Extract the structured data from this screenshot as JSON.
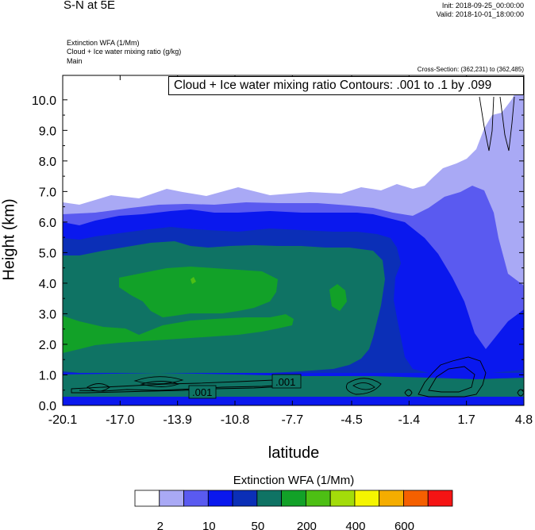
{
  "header": {
    "title": "S-N at 5E",
    "init": "Init: 2018-09-25_00:00:00",
    "valid": "Valid: 2018-10-01_18:00:00",
    "fields": [
      "Extinction WFA   (1/Mm)",
      "Cloud + Ice water mixing ratio   (g/kg)",
      "Main"
    ],
    "cross_section": "Cross-Section: (362,231) to (362,485)"
  },
  "contour_info": "Cloud + Ice water mixing ratio Contours: .001 to .1 by .099",
  "colors": {
    "levels": [
      "#ffffff",
      "#a9a9f5",
      "#5a5af0",
      "#0a18ee",
      "#0b2fb7",
      "#0f7364",
      "#12a128",
      "#4dbf14",
      "#a3dc0a",
      "#f5f500",
      "#f5ad00",
      "#f56000",
      "#f51414"
    ]
  },
  "chart_data": {
    "type": "heatmap",
    "xlabel": "latitude",
    "ylabel": "Height (km)",
    "xlim": [
      -20.1,
      4.8
    ],
    "ylim": [
      0.0,
      10.8
    ],
    "x_ticks": [
      "-20.1",
      "-17.0",
      "-13.9",
      "-10.8",
      "-7.7",
      "-4.5",
      "-1.4",
      "1.7",
      "4.8"
    ],
    "y_ticks": [
      "0.0",
      "1.0",
      "2.0",
      "3.0",
      "4.0",
      "5.0",
      "6.0",
      "7.0",
      "8.0",
      "9.0",
      "10.0"
    ],
    "colorbar": {
      "title": "Extinction WFA  (1/Mm)",
      "labels": [
        "2",
        "10",
        "50",
        "200",
        "400",
        "600"
      ],
      "num_bins": 13
    },
    "contour_labels": [
      ".001",
      ".001"
    ],
    "cloud_layer_top_km": [
      6.4,
      6.0,
      5.9,
      6.5,
      6.6,
      6.5,
      6.6,
      6.6,
      6.4,
      5.8,
      10.8
    ],
    "green_layer_top_km": [
      3.6,
      4.5,
      4.3,
      4.6,
      4.3,
      4.4,
      4.0,
      3.5,
      2.2,
      0.4
    ]
  }
}
